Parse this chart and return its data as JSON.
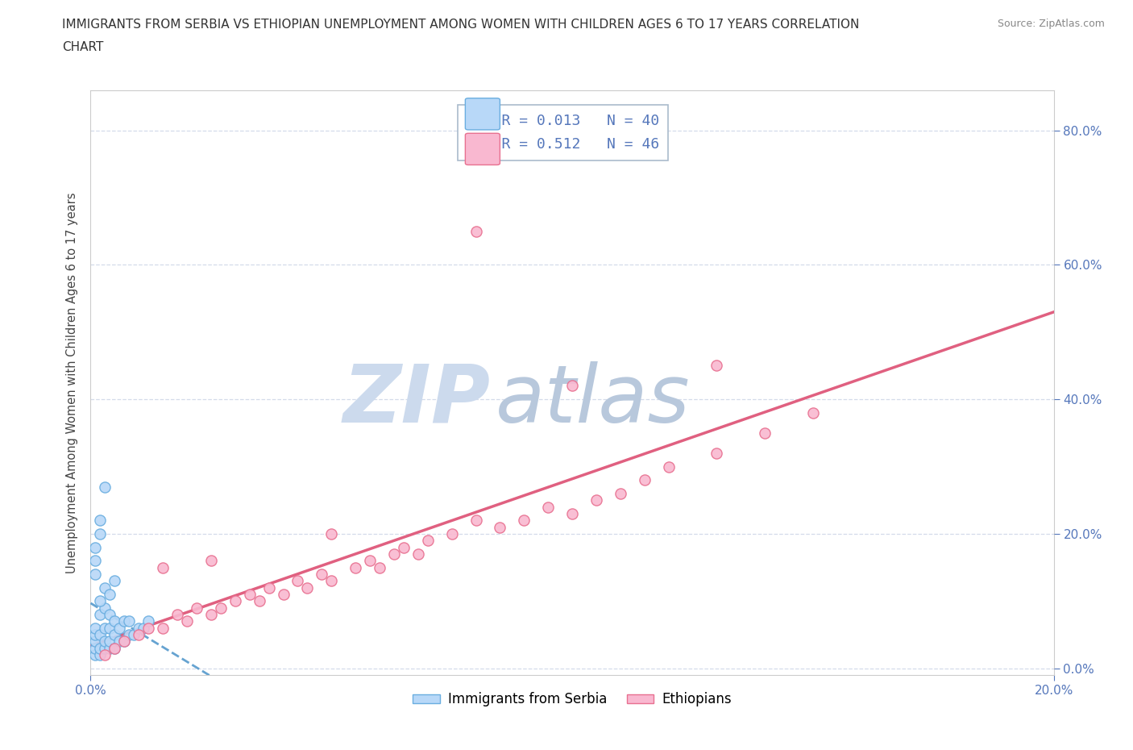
{
  "title_line1": "IMMIGRANTS FROM SERBIA VS ETHIOPIAN UNEMPLOYMENT AMONG WOMEN WITH CHILDREN AGES 6 TO 17 YEARS CORRELATION",
  "title_line2": "CHART",
  "source": "Source: ZipAtlas.com",
  "ylabel": "Unemployment Among Women with Children Ages 6 to 17 years",
  "xmin": 0.0,
  "xmax": 0.2,
  "ymin": -0.01,
  "ymax": 0.86,
  "ytick_values": [
    0.0,
    0.2,
    0.4,
    0.6,
    0.8
  ],
  "ytick_labels": [
    "0.0%",
    "20.0%",
    "40.0%",
    "60.0%",
    "80.0%"
  ],
  "xtick_values": [
    0.0,
    0.2
  ],
  "xtick_labels": [
    "0.0%",
    "20.0%"
  ],
  "serbia_fill_color": "#b8d8f8",
  "serbia_edge_color": "#6aaee0",
  "ethiopia_fill_color": "#f9b8d0",
  "ethiopia_edge_color": "#e87090",
  "serbia_line_color": "#5599cc",
  "ethiopia_line_color": "#e06080",
  "grid_color": "#d0d8e8",
  "background_color": "#ffffff",
  "watermark_zip_color": "#c8d8ee",
  "watermark_atlas_color": "#c0cce0",
  "tick_color": "#5577bb",
  "title_color": "#333333",
  "source_color": "#888888",
  "R_serbia": 0.013,
  "N_serbia": 40,
  "R_ethiopia": 0.512,
  "N_ethiopia": 46,
  "legend_label_serbia": "Immigrants from Serbia",
  "legend_label_ethiopia": "Ethiopians",
  "serbia_x": [
    0.001,
    0.001,
    0.001,
    0.001,
    0.001,
    0.002,
    0.002,
    0.002,
    0.002,
    0.003,
    0.003,
    0.003,
    0.003,
    0.004,
    0.004,
    0.004,
    0.004,
    0.005,
    0.005,
    0.005,
    0.006,
    0.006,
    0.007,
    0.007,
    0.008,
    0.008,
    0.009,
    0.01,
    0.011,
    0.012,
    0.002,
    0.003,
    0.004,
    0.005,
    0.003,
    0.002,
    0.001,
    0.001,
    0.001,
    0.002
  ],
  "serbia_y": [
    0.02,
    0.03,
    0.04,
    0.05,
    0.06,
    0.02,
    0.03,
    0.05,
    0.08,
    0.03,
    0.04,
    0.06,
    0.09,
    0.03,
    0.04,
    0.06,
    0.08,
    0.03,
    0.05,
    0.07,
    0.04,
    0.06,
    0.04,
    0.07,
    0.05,
    0.07,
    0.05,
    0.06,
    0.06,
    0.07,
    0.1,
    0.12,
    0.11,
    0.13,
    0.27,
    0.22,
    0.16,
    0.18,
    0.14,
    0.2
  ],
  "ethiopia_x": [
    0.003,
    0.005,
    0.007,
    0.01,
    0.012,
    0.015,
    0.018,
    0.02,
    0.022,
    0.025,
    0.027,
    0.03,
    0.033,
    0.035,
    0.037,
    0.04,
    0.043,
    0.045,
    0.048,
    0.05,
    0.055,
    0.058,
    0.06,
    0.063,
    0.065,
    0.068,
    0.07,
    0.075,
    0.08,
    0.085,
    0.09,
    0.095,
    0.1,
    0.105,
    0.11,
    0.115,
    0.12,
    0.13,
    0.14,
    0.15,
    0.1,
    0.05,
    0.025,
    0.015,
    0.13,
    0.08
  ],
  "ethiopia_y": [
    0.02,
    0.03,
    0.04,
    0.05,
    0.06,
    0.06,
    0.08,
    0.07,
    0.09,
    0.08,
    0.09,
    0.1,
    0.11,
    0.1,
    0.12,
    0.11,
    0.13,
    0.12,
    0.14,
    0.13,
    0.15,
    0.16,
    0.15,
    0.17,
    0.18,
    0.17,
    0.19,
    0.2,
    0.22,
    0.21,
    0.22,
    0.24,
    0.23,
    0.25,
    0.26,
    0.28,
    0.3,
    0.32,
    0.35,
    0.38,
    0.42,
    0.2,
    0.16,
    0.15,
    0.45,
    0.65
  ]
}
